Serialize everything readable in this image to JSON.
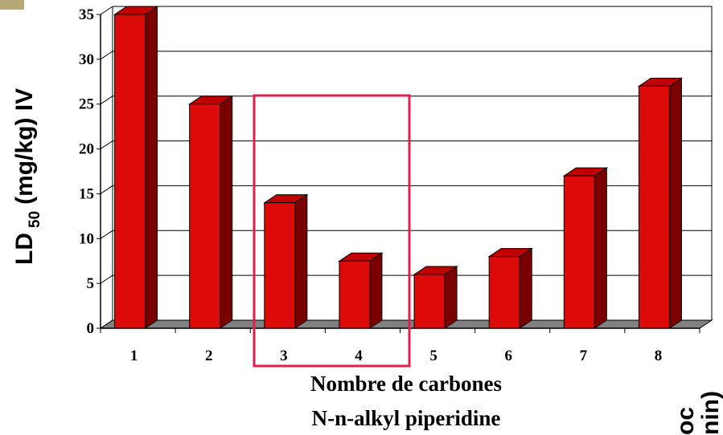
{
  "chart_data": {
    "type": "bar3d",
    "y_label": {
      "main": "LD",
      "sub": "50",
      "rest": "(mg/kg) IV"
    },
    "x_label": [
      "Nombre de carbones",
      "N-n-alkyl piperidine"
    ],
    "categories": [
      "1",
      "2",
      "3",
      "4",
      "5",
      "6",
      "7",
      "8"
    ],
    "values": [
      35,
      25,
      14,
      7.5,
      6,
      8,
      17,
      27
    ],
    "color": "#dd0a0a",
    "ylim": [
      0,
      35
    ],
    "yticks": [
      0,
      5,
      10,
      15,
      20,
      25,
      30,
      35
    ],
    "grid": true,
    "cut_off_text": [
      "oc",
      "nin)"
    ]
  }
}
